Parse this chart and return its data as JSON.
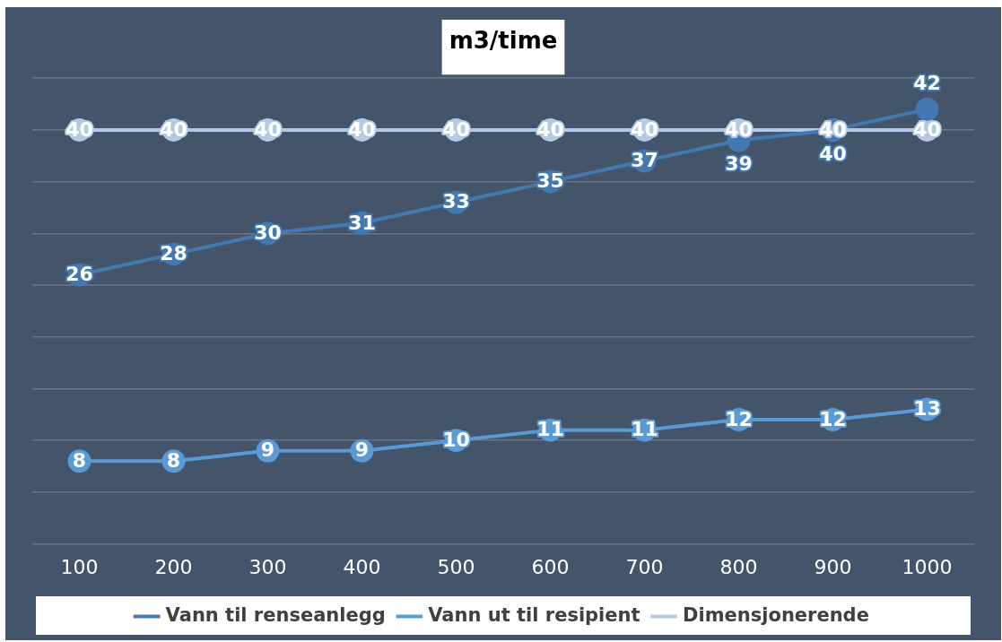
{
  "chart_data": {
    "type": "line",
    "title": "m3/time",
    "categories": [
      "100",
      "200",
      "300",
      "400",
      "500",
      "600",
      "700",
      "800",
      "900",
      "1000"
    ],
    "series": [
      {
        "name": "Vann til renseanlegg",
        "color": "#4279b0",
        "values": [
          26,
          28,
          30,
          31,
          33,
          35,
          37,
          39,
          40,
          42
        ]
      },
      {
        "name": "Vann ut til resipient",
        "color": "#5b9bd5",
        "values": [
          8,
          8,
          9,
          9,
          10,
          11,
          11,
          12,
          12,
          13
        ]
      },
      {
        "name": "Dimensjonerende",
        "color": "#b4c9e8",
        "values": [
          40,
          40,
          40,
          40,
          40,
          40,
          40,
          40,
          40,
          40
        ]
      }
    ],
    "tick_labels": "x",
    "grid": "y",
    "legend": "bottom",
    "marker": "circle",
    "line_style": "solid",
    "data_labels": true
  }
}
